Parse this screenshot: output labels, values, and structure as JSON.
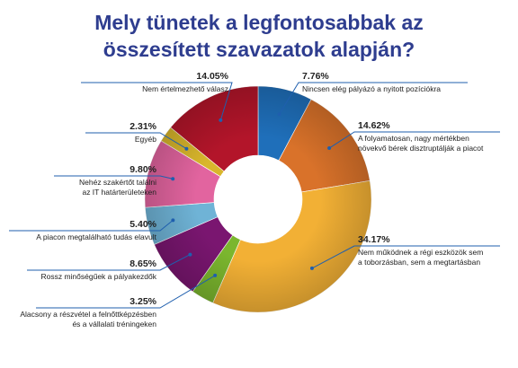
{
  "title": {
    "line1": "Mely tünetek a legfontosabbak az",
    "line2": "összesített szavazatok alapján?"
  },
  "chart_data": {
    "type": "pie",
    "subtype": "donut",
    "series": [
      {
        "label": "Nincsen elég pályázó a nyitott pozíciókra",
        "label_lines": [
          "Nincsen elég pályázó a nyitott pozíciókra"
        ],
        "value": 7.76,
        "value_text": "7.76%",
        "color": "#1f6fba"
      },
      {
        "label": "A folyamatosan, nagy mértékben növekvő bérek disztruptálják a piacot",
        "label_lines": [
          "A folyamatosan, nagy mértékben",
          "növekvő bérek disztruptálják a piacot"
        ],
        "value": 14.62,
        "value_text": "14.62%",
        "color": "#d9722a"
      },
      {
        "label": "Nem működnek a régi eszközök sem a toborzásban, sem a megtartásban",
        "label_lines": [
          "Nem működnek a régi eszközök sem",
          "a toborzásban, sem a megtartásban"
        ],
        "value": 34.17,
        "value_text": "34.17%",
        "color": "#f2b035"
      },
      {
        "label": "Alacsony a részvétel a felnőttképzésben és a vállalati tréningeken",
        "label_lines": [
          "Alacsony a részvétel a felnőttképzésben",
          "és a vállalati tréningeken"
        ],
        "value": 3.25,
        "value_text": "3.25%",
        "color": "#7bb62e"
      },
      {
        "label": "Rossz minőségűek a pályakezdők",
        "label_lines": [
          "Rossz minőségűek a pályakezdők"
        ],
        "value": 8.65,
        "value_text": "8.65%",
        "color": "#7a1670"
      },
      {
        "label": "A piacon megtalálható tudás elavult",
        "label_lines": [
          "A piacon megtalálható tudás elavult"
        ],
        "value": 5.4,
        "value_text": "5.40%",
        "color": "#6fb3d6"
      },
      {
        "label": "Nehéz szakértőt találni az IT határterületeken",
        "label_lines": [
          "Nehéz szakértőt találni",
          "az IT határterületeken"
        ],
        "value": 9.8,
        "value_text": "9.80%",
        "color": "#e2649f"
      },
      {
        "label": "Egyéb",
        "label_lines": [
          "Egyéb"
        ],
        "value": 2.31,
        "value_text": "2.31%",
        "color": "#d9b62c"
      },
      {
        "label": "Nem értelmezhető válasz",
        "label_lines": [
          "Nem értelmezhető válasz"
        ],
        "value": 14.05,
        "value_text": "14.05%",
        "color": "#b3152a"
      }
    ]
  }
}
